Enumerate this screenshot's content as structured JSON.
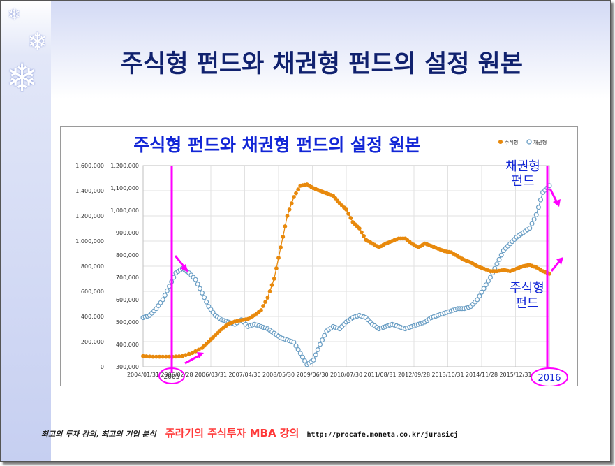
{
  "slide": {
    "title": "주식형 펀드와 채권형 펀드의 설정 원본"
  },
  "footer": {
    "left": "최고의 투자 강의, 최고의 기업 분석",
    "middle": "쥬라기의 주식투자 MBA 강의",
    "url": "http://procafe.moneta.co.kr/jurasicj"
  },
  "colors": {
    "stock": "#e8890c",
    "bond": "#6a9ec4",
    "annotation": "#ff00ff",
    "chart_title": "#1226d6",
    "slide_title": "#10216e"
  },
  "chart_data": {
    "type": "line",
    "title": "주식형 펀드와 채권형 펀드의 설정 원본",
    "legend": {
      "position": "top-right",
      "entries": [
        "주식형",
        "채권형"
      ]
    },
    "x_ticks": [
      "2004/01/31",
      "2005/02/28",
      "2006/03/31",
      "2007/04/30",
      "2008/05/30",
      "2009/06/30",
      "2010/07/30",
      "2011/08/31",
      "2012/09/28",
      "2013/10/31",
      "2014/11/28",
      "2015/12/31"
    ],
    "x_range": [
      2004.0,
      2016.4
    ],
    "y_left": {
      "ticks": [
        "0",
        "200,000",
        "400,000",
        "600,000",
        "800,000",
        "1,000,000",
        "1,200,000",
        "1,400,000",
        "1,600,000"
      ],
      "range": [
        0,
        1600000
      ]
    },
    "y_right": {
      "ticks": [
        "300,000",
        "400,000",
        "500,000",
        "600,000",
        "700,000",
        "800,000",
        "900,000",
        "1,000,000",
        "1,100,000",
        "1,200,000"
      ],
      "range": [
        300000,
        1200000
      ]
    },
    "series": [
      {
        "name": "주식형",
        "axis": "left",
        "points": [
          [
            2004.0,
            85000
          ],
          [
            2004.3,
            80000
          ],
          [
            2004.6,
            80000
          ],
          [
            2004.9,
            80000
          ],
          [
            2005.2,
            85000
          ],
          [
            2005.5,
            110000
          ],
          [
            2005.8,
            150000
          ],
          [
            2006.0,
            200000
          ],
          [
            2006.2,
            250000
          ],
          [
            2006.4,
            300000
          ],
          [
            2006.6,
            340000
          ],
          [
            2006.8,
            360000
          ],
          [
            2007.0,
            370000
          ],
          [
            2007.2,
            380000
          ],
          [
            2007.4,
            410000
          ],
          [
            2007.6,
            450000
          ],
          [
            2007.8,
            550000
          ],
          [
            2008.0,
            700000
          ],
          [
            2008.2,
            950000
          ],
          [
            2008.4,
            1200000
          ],
          [
            2008.6,
            1350000
          ],
          [
            2008.8,
            1440000
          ],
          [
            2009.0,
            1450000
          ],
          [
            2009.2,
            1420000
          ],
          [
            2009.4,
            1400000
          ],
          [
            2009.6,
            1380000
          ],
          [
            2009.8,
            1360000
          ],
          [
            2010.0,
            1300000
          ],
          [
            2010.2,
            1250000
          ],
          [
            2010.4,
            1150000
          ],
          [
            2010.6,
            1100000
          ],
          [
            2010.8,
            1010000
          ],
          [
            2011.0,
            980000
          ],
          [
            2011.2,
            950000
          ],
          [
            2011.4,
            980000
          ],
          [
            2011.6,
            1000000
          ],
          [
            2011.8,
            1020000
          ],
          [
            2012.0,
            1020000
          ],
          [
            2012.2,
            980000
          ],
          [
            2012.4,
            950000
          ],
          [
            2012.6,
            980000
          ],
          [
            2012.8,
            960000
          ],
          [
            2013.0,
            940000
          ],
          [
            2013.2,
            920000
          ],
          [
            2013.4,
            910000
          ],
          [
            2013.6,
            880000
          ],
          [
            2013.8,
            850000
          ],
          [
            2014.0,
            830000
          ],
          [
            2014.2,
            800000
          ],
          [
            2014.4,
            780000
          ],
          [
            2014.6,
            760000
          ],
          [
            2014.8,
            760000
          ],
          [
            2015.0,
            770000
          ],
          [
            2015.2,
            760000
          ],
          [
            2015.4,
            780000
          ],
          [
            2015.6,
            800000
          ],
          [
            2015.8,
            810000
          ],
          [
            2016.0,
            790000
          ],
          [
            2016.2,
            760000
          ],
          [
            2016.4,
            740000
          ]
        ]
      },
      {
        "name": "채권형",
        "axis": "right",
        "points": [
          [
            2004.0,
            520000
          ],
          [
            2004.2,
            530000
          ],
          [
            2004.4,
            560000
          ],
          [
            2004.6,
            600000
          ],
          [
            2004.8,
            660000
          ],
          [
            2005.0,
            720000
          ],
          [
            2005.2,
            740000
          ],
          [
            2005.4,
            720000
          ],
          [
            2005.6,
            690000
          ],
          [
            2005.8,
            630000
          ],
          [
            2006.0,
            570000
          ],
          [
            2006.2,
            530000
          ],
          [
            2006.4,
            510000
          ],
          [
            2006.6,
            500000
          ],
          [
            2006.8,
            490000
          ],
          [
            2007.0,
            510000
          ],
          [
            2007.2,
            480000
          ],
          [
            2007.4,
            490000
          ],
          [
            2007.6,
            480000
          ],
          [
            2007.8,
            470000
          ],
          [
            2008.0,
            450000
          ],
          [
            2008.2,
            430000
          ],
          [
            2008.4,
            420000
          ],
          [
            2008.6,
            410000
          ],
          [
            2008.8,
            360000
          ],
          [
            2009.0,
            310000
          ],
          [
            2009.2,
            330000
          ],
          [
            2009.4,
            400000
          ],
          [
            2009.6,
            460000
          ],
          [
            2009.8,
            480000
          ],
          [
            2010.0,
            470000
          ],
          [
            2010.2,
            500000
          ],
          [
            2010.4,
            520000
          ],
          [
            2010.6,
            530000
          ],
          [
            2010.8,
            520000
          ],
          [
            2011.0,
            490000
          ],
          [
            2011.2,
            470000
          ],
          [
            2011.4,
            480000
          ],
          [
            2011.6,
            490000
          ],
          [
            2011.8,
            480000
          ],
          [
            2012.0,
            470000
          ],
          [
            2012.2,
            480000
          ],
          [
            2012.4,
            490000
          ],
          [
            2012.6,
            500000
          ],
          [
            2012.8,
            520000
          ],
          [
            2013.0,
            530000
          ],
          [
            2013.2,
            540000
          ],
          [
            2013.4,
            550000
          ],
          [
            2013.6,
            560000
          ],
          [
            2013.8,
            560000
          ],
          [
            2014.0,
            570000
          ],
          [
            2014.2,
            600000
          ],
          [
            2014.4,
            650000
          ],
          [
            2014.6,
            700000
          ],
          [
            2014.8,
            760000
          ],
          [
            2015.0,
            820000
          ],
          [
            2015.2,
            850000
          ],
          [
            2015.4,
            880000
          ],
          [
            2015.6,
            900000
          ],
          [
            2015.8,
            920000
          ],
          [
            2016.0,
            980000
          ],
          [
            2016.2,
            1080000
          ],
          [
            2016.4,
            1110000
          ]
        ]
      }
    ],
    "annotations": {
      "bond_label": [
        "채권형",
        "펀드"
      ],
      "stock_label": [
        "주식형",
        "펀드"
      ],
      "year_2005": "2005",
      "year_2016": "2016"
    }
  }
}
